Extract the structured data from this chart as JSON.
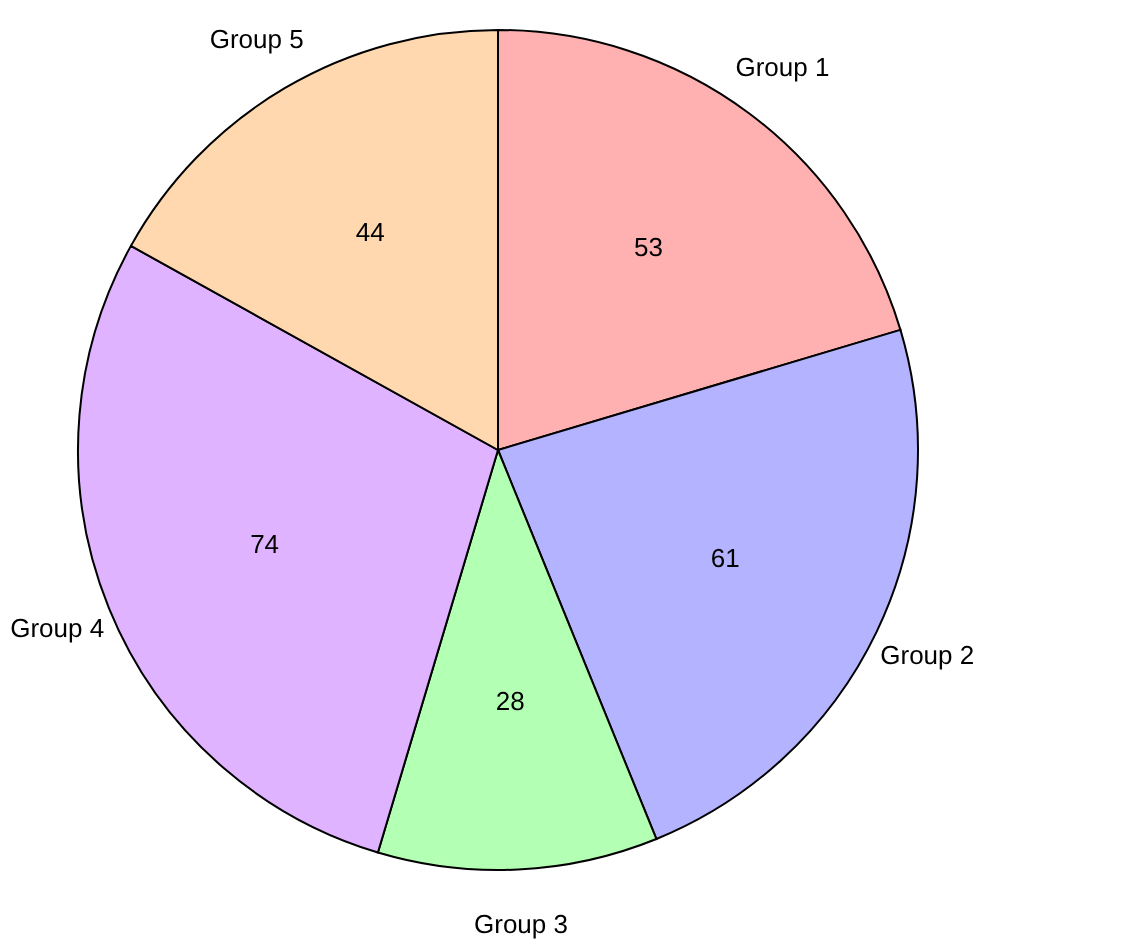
{
  "chart_data": {
    "type": "pie",
    "categories": [
      "Group 1",
      "Group 2",
      "Group 3",
      "Group 4",
      "Group 5"
    ],
    "values": [
      53,
      61,
      28,
      74,
      44
    ],
    "colors": [
      "#ffb0b0",
      "#b3b3ff",
      "#b3ffb3",
      "#dfb3ff",
      "#ffd8b0"
    ],
    "data_labels": true,
    "legend": false
  }
}
